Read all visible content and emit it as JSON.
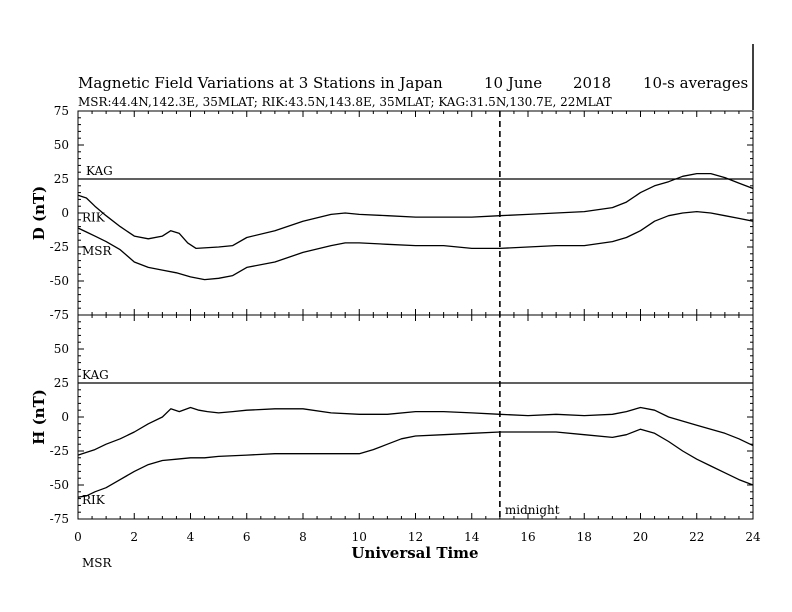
{
  "header": {
    "title": "Magnetic Field Variations at 3 Stations in Japan",
    "date": "10 June",
    "year": "2018",
    "averaging": "10-s averages",
    "stations_line": "MSR:44.4N,142.3E, 35MLAT;  RIK:43.5N,143.8E, 35MLAT;  KAG:31.5N,130.7E, 22MLAT"
  },
  "chart_data": {
    "type": "line",
    "xlabel": "Universal Time",
    "xlim": [
      0,
      24
    ],
    "xticks": [
      0,
      2,
      4,
      6,
      8,
      10,
      12,
      14,
      16,
      18,
      20,
      22,
      24
    ],
    "annotation": {
      "x": 15,
      "label": "midnight"
    },
    "panels": [
      {
        "id": "D",
        "ylabel": "D (nT)",
        "ylim": [
          -75,
          75
        ],
        "yticks": [
          75,
          50,
          25,
          0,
          -25,
          -50,
          -75
        ],
        "series": [
          {
            "name": "KAG",
            "x": [
              0,
              24
            ],
            "y": [
              25,
              25
            ]
          },
          {
            "name": "RIK",
            "x": [
              0,
              0.3,
              0.6,
              1,
              1.5,
              2,
              2.5,
              3,
              3.3,
              3.6,
              3.9,
              4.2,
              5,
              5.5,
              6,
              7,
              8,
              9,
              9.5,
              10,
              11,
              12,
              13,
              14,
              15,
              16,
              17,
              18,
              19,
              19.5,
              20,
              20.5,
              21,
              21.5,
              22,
              22.5,
              23,
              23.5,
              24
            ],
            "y": [
              13,
              11,
              5,
              -2,
              -10,
              -17,
              -19,
              -17,
              -13,
              -15,
              -22,
              -26,
              -25,
              -24,
              -18,
              -13,
              -6,
              -1,
              0,
              -1,
              -2,
              -3,
              -3,
              -3,
              -2,
              -1,
              0,
              1,
              4,
              8,
              15,
              20,
              23,
              27,
              29,
              29,
              26,
              22,
              18
            ]
          },
          {
            "name": "MSR",
            "x": [
              0,
              0.3,
              0.6,
              1,
              1.5,
              2,
              2.5,
              3,
              3.5,
              4,
              4.5,
              5,
              5.5,
              6,
              7,
              8,
              9,
              9.5,
              10,
              11,
              12,
              13,
              14,
              15,
              16,
              17,
              18,
              19,
              19.5,
              20,
              20.5,
              21,
              21.5,
              22,
              22.5,
              23,
              23.5,
              24
            ],
            "y": [
              -11,
              -14,
              -17,
              -21,
              -27,
              -36,
              -40,
              -42,
              -44,
              -47,
              -49,
              -48,
              -46,
              -40,
              -36,
              -29,
              -24,
              -22,
              -22,
              -23,
              -24,
              -24,
              -26,
              -26,
              -25,
              -24,
              -24,
              -21,
              -18,
              -13,
              -6,
              -2,
              0,
              1,
              0,
              -2,
              -4,
              -6
            ]
          }
        ]
      },
      {
        "id": "H",
        "ylabel": "H (nT)",
        "ylim": [
          -75,
          75
        ],
        "yticks": [
          75,
          50,
          25,
          0,
          -25,
          -50,
          -75
        ],
        "series": [
          {
            "name": "KAG",
            "x": [
              0,
              24
            ],
            "y": [
              25,
              25
            ]
          },
          {
            "name": "RIK",
            "x": [
              0,
              0.3,
              0.6,
              1,
              1.5,
              2,
              2.5,
              3,
              3.3,
              3.6,
              4,
              4.3,
              4.6,
              5,
              5.5,
              6,
              7,
              8,
              9,
              10,
              11,
              12,
              13,
              14,
              15,
              16,
              17,
              18,
              19,
              19.5,
              20,
              20.5,
              21,
              21.5,
              22,
              22.5,
              23,
              23.5,
              24
            ],
            "y": [
              -28,
              -26,
              -24,
              -20,
              -16,
              -11,
              -5,
              0,
              6,
              4,
              7,
              5,
              4,
              3,
              4,
              5,
              6,
              6,
              3,
              2,
              2,
              4,
              4,
              3,
              2,
              1,
              2,
              1,
              2,
              4,
              7,
              5,
              0,
              -3,
              -6,
              -9,
              -12,
              -16,
              -21
            ]
          },
          {
            "name": "MSR",
            "x": [
              0,
              0.3,
              0.6,
              1,
              1.5,
              2,
              2.5,
              3,
              3.5,
              4,
              4.5,
              5,
              6,
              7,
              8,
              9,
              10,
              10.5,
              11,
              11.5,
              12,
              13,
              14,
              15,
              16,
              17,
              18,
              19,
              19.5,
              20,
              20.5,
              21,
              21.5,
              22,
              22.5,
              23,
              23.5,
              24
            ],
            "y": [
              -59,
              -58,
              -55,
              -52,
              -46,
              -40,
              -35,
              -32,
              -31,
              -30,
              -30,
              -29,
              -28,
              -27,
              -27,
              -27,
              -27,
              -24,
              -20,
              -16,
              -14,
              -13,
              -12,
              -11,
              -11,
              -11,
              -13,
              -15,
              -13,
              -9,
              -12,
              -18,
              -25,
              -31,
              -36,
              -41,
              -46,
              -50
            ]
          }
        ]
      }
    ]
  }
}
